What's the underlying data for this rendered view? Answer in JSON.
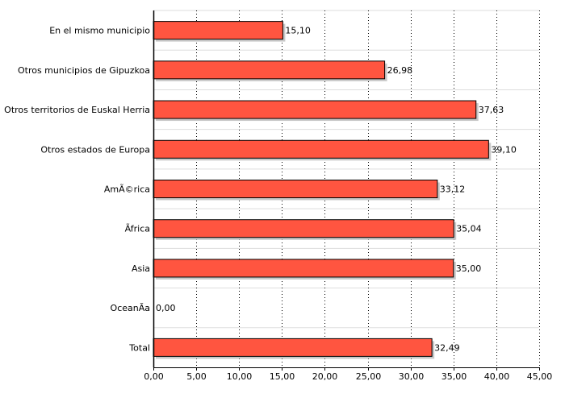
{
  "chart_data": {
    "type": "bar",
    "orientation": "horizontal",
    "categories": [
      "En el mismo municipio",
      "Otros municipios de Gipuzkoa",
      "Otros territorios de Euskal Herria",
      "Otros estados de Europa",
      "AmÃ©rica",
      "Ãfrica",
      "Asia",
      "OceanÃ­a",
      "Total"
    ],
    "values": [
      15.1,
      26.98,
      37.63,
      39.1,
      33.12,
      35.04,
      35.0,
      0.0,
      32.49
    ],
    "value_labels": [
      "15,10",
      "26,98",
      "37,63",
      "39,10",
      "33,12",
      "35,04",
      "35,00",
      "0,00",
      "32,49"
    ],
    "xlim": [
      0,
      45
    ],
    "x_ticks": [
      0,
      5,
      10,
      15,
      20,
      25,
      30,
      35,
      40,
      45
    ],
    "x_tick_labels": [
      "0,00",
      "5,00",
      "10,00",
      "15,00",
      "20,00",
      "25,00",
      "30,00",
      "35,00",
      "40,00",
      "45,00"
    ],
    "title": "",
    "xlabel": "",
    "ylabel": "",
    "grid": true,
    "colors": {
      "bar_fill": "#FF5540",
      "bar_shadow": "#C8C8C8",
      "bar_stroke": "#000000",
      "grid_vertical": "#000000",
      "grid_horizontal": "#DDDDDD"
    }
  }
}
